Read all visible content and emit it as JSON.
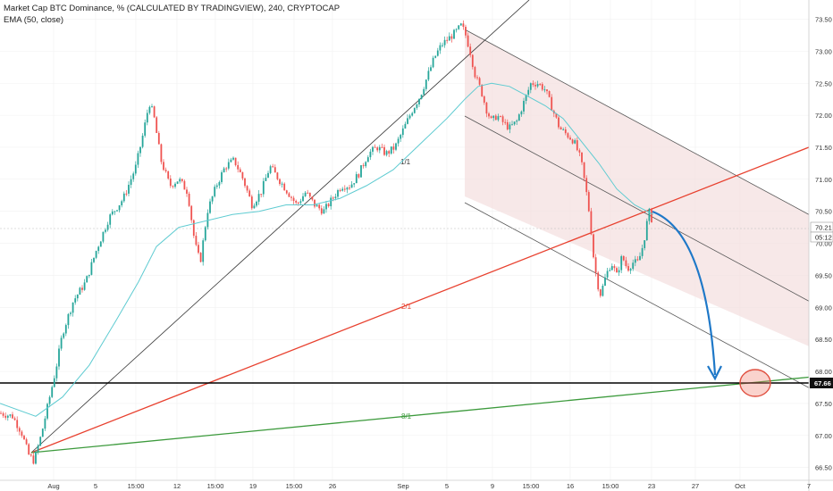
{
  "chart_data": {
    "type": "line",
    "title": "Market Cap BTC Dominance, % (CALCULATED BY TRADINGVIEW), 240, CRYPTOCAP",
    "legend_entries": [
      "EMA (50, close)"
    ],
    "x_tick_labels": [
      "Aug",
      "5",
      "15:00",
      "12",
      "15:00",
      "19",
      "15:00",
      "26",
      "Sep",
      "5",
      "9",
      "15:00",
      "16",
      "15:00",
      "23",
      "27",
      "Oct",
      "7"
    ],
    "y_tick_labels": [
      "66.50",
      "67.00",
      "67.50",
      "68.00",
      "68.50",
      "69.00",
      "69.50",
      "70.00",
      "70.50",
      "71.00",
      "71.50",
      "72.00",
      "72.50",
      "73.00",
      "73.50"
    ],
    "ylim": [
      66.3,
      73.8
    ],
    "price_series": {
      "name": "",
      "points": [
        [
          0,
          67.35
        ],
        [
          14,
          67.3
        ],
        [
          24,
          67.05
        ],
        [
          32,
          66.7
        ],
        [
          38,
          66.6
        ],
        [
          46,
          67.0
        ],
        [
          54,
          67.5
        ],
        [
          62,
          68.0
        ],
        [
          70,
          68.6
        ],
        [
          82,
          69.1
        ],
        [
          96,
          69.4
        ],
        [
          108,
          69.9
        ],
        [
          122,
          70.4
        ],
        [
          138,
          70.7
        ],
        [
          152,
          71.2
        ],
        [
          160,
          71.7
        ],
        [
          167,
          72.2
        ],
        [
          172,
          72.0
        ],
        [
          180,
          71.3
        ],
        [
          190,
          70.9
        ],
        [
          200,
          71.0
        ],
        [
          210,
          70.8
        ],
        [
          218,
          70.0
        ],
        [
          224,
          69.7
        ],
        [
          232,
          70.5
        ],
        [
          242,
          70.9
        ],
        [
          252,
          71.2
        ],
        [
          262,
          71.3
        ],
        [
          272,
          71.0
        ],
        [
          282,
          70.6
        ],
        [
          292,
          70.8
        ],
        [
          302,
          71.2
        ],
        [
          312,
          71.0
        ],
        [
          322,
          70.8
        ],
        [
          332,
          70.6
        ],
        [
          342,
          70.8
        ],
        [
          352,
          70.6
        ],
        [
          362,
          70.5
        ],
        [
          372,
          70.7
        ],
        [
          382,
          70.9
        ],
        [
          392,
          70.9
        ],
        [
          402,
          71.1
        ],
        [
          412,
          71.4
        ],
        [
          422,
          71.5
        ],
        [
          432,
          71.4
        ],
        [
          442,
          71.5
        ],
        [
          452,
          71.8
        ],
        [
          462,
          72.1
        ],
        [
          470,
          72.3
        ],
        [
          478,
          72.6
        ],
        [
          486,
          72.9
        ],
        [
          494,
          73.1
        ],
        [
          502,
          73.2
        ],
        [
          510,
          73.3
        ],
        [
          516,
          73.4
        ],
        [
          520,
          73.3
        ],
        [
          526,
          73.0
        ],
        [
          532,
          72.6
        ],
        [
          538,
          72.4
        ],
        [
          544,
          72.1
        ],
        [
          550,
          71.9
        ],
        [
          556,
          72.0
        ],
        [
          562,
          71.9
        ],
        [
          570,
          71.8
        ],
        [
          578,
          71.9
        ],
        [
          586,
          72.2
        ],
        [
          594,
          72.5
        ],
        [
          602,
          72.5
        ],
        [
          610,
          72.4
        ],
        [
          618,
          72.1
        ],
        [
          626,
          71.8
        ],
        [
          634,
          71.7
        ],
        [
          642,
          71.6
        ],
        [
          650,
          71.3
        ],
        [
          656,
          70.8
        ],
        [
          660,
          70.4
        ],
        [
          664,
          69.8
        ],
        [
          668,
          69.4
        ],
        [
          672,
          69.2
        ],
        [
          678,
          69.5
        ],
        [
          684,
          69.7
        ],
        [
          690,
          69.5
        ],
        [
          696,
          69.8
        ],
        [
          702,
          69.6
        ],
        [
          708,
          69.7
        ],
        [
          714,
          69.7
        ],
        [
          720,
          70.0
        ],
        [
          726,
          70.5
        ],
        [
          731,
          70.3
        ]
      ]
    },
    "ema_series": {
      "name": "EMA (50, close)",
      "points": [
        [
          0,
          67.5
        ],
        [
          40,
          67.3
        ],
        [
          70,
          67.6
        ],
        [
          100,
          68.1
        ],
        [
          130,
          68.8
        ],
        [
          155,
          69.4
        ],
        [
          175,
          69.95
        ],
        [
          200,
          70.25
        ],
        [
          230,
          70.35
        ],
        [
          260,
          70.45
        ],
        [
          290,
          70.5
        ],
        [
          320,
          70.6
        ],
        [
          350,
          70.6
        ],
        [
          380,
          70.7
        ],
        [
          410,
          70.9
        ],
        [
          440,
          71.15
        ],
        [
          470,
          71.55
        ],
        [
          500,
          71.95
        ],
        [
          520,
          72.25
        ],
        [
          535,
          72.45
        ],
        [
          550,
          72.5
        ],
        [
          570,
          72.45
        ],
        [
          590,
          72.3
        ],
        [
          610,
          72.15
        ],
        [
          630,
          71.95
        ],
        [
          650,
          71.6
        ],
        [
          670,
          71.25
        ],
        [
          690,
          70.85
        ],
        [
          710,
          70.6
        ],
        [
          731,
          70.45
        ]
      ]
    },
    "price_labels": [
      "70.21",
      "05:12",
      "67.66"
    ],
    "horizontal_level": 67.66,
    "annotations": [
      "1/1",
      "2/1",
      "8/1"
    ],
    "colors": {
      "candle_up": "#26a69a",
      "candle_down": "#ef5350",
      "ema": "#5ecbd1",
      "gann_1x1": "#333333",
      "gann_2x1": "#e8412f",
      "gann_8x1": "#3c9a3c",
      "channel_fill": "#f4dede",
      "forecast_arrow": "#1e78c8",
      "target_circle": "#f08070",
      "level_line": "#000000"
    }
  }
}
